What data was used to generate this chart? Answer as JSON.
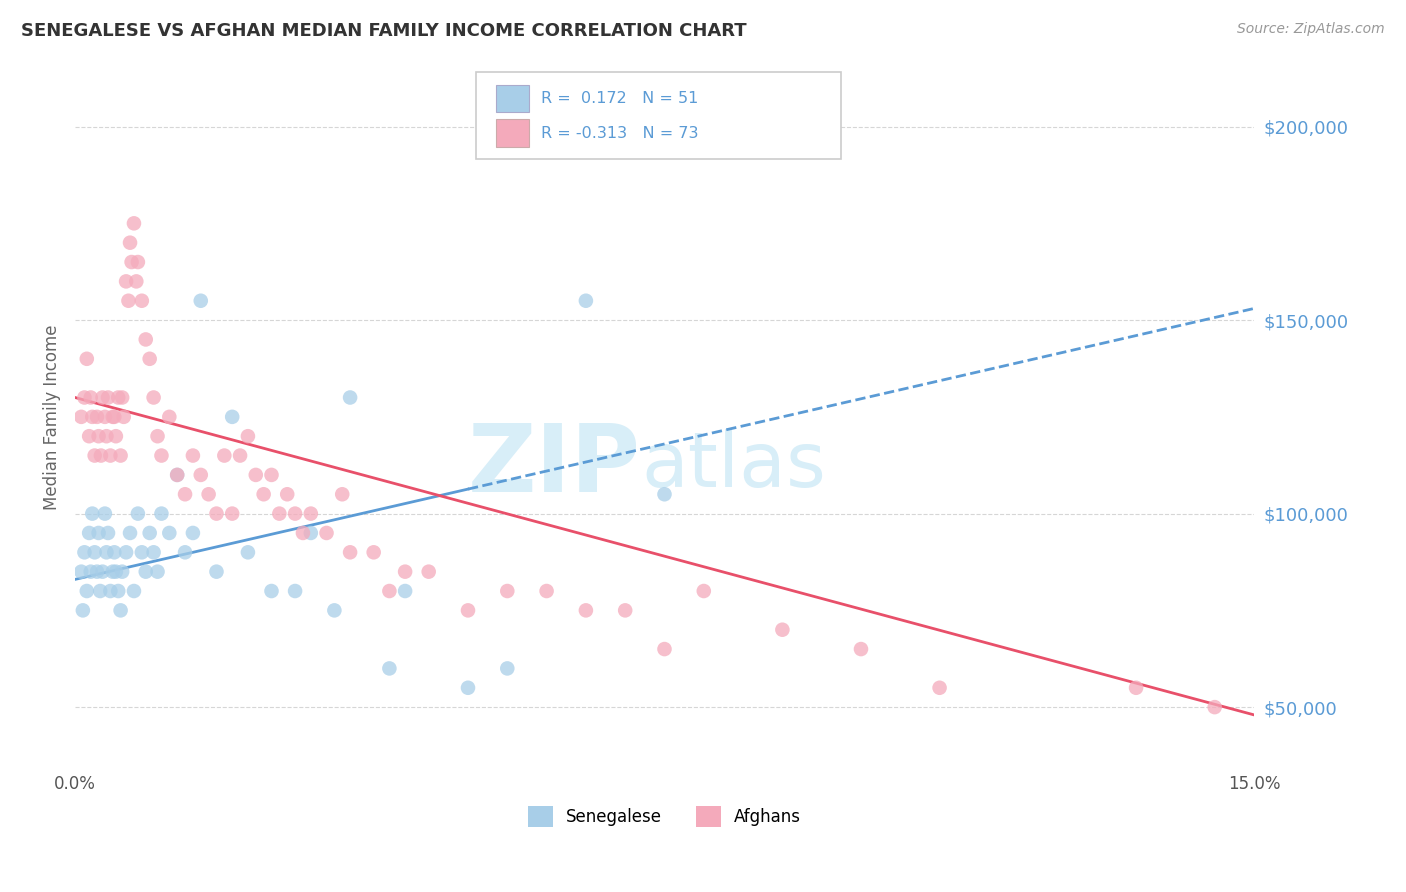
{
  "title": "SENEGALESE VS AFGHAN MEDIAN FAMILY INCOME CORRELATION CHART",
  "source": "Source: ZipAtlas.com",
  "ylabel": "Median Family Income",
  "y_tick_labels": [
    "$50,000",
    "$100,000",
    "$150,000",
    "$200,000"
  ],
  "y_tick_values": [
    50000,
    100000,
    150000,
    200000
  ],
  "ylim": [
    35000,
    215000
  ],
  "xlim": [
    0.0,
    15.0
  ],
  "legend_r1": "R =  0.172",
  "legend_n1": "N = 51",
  "legend_r2": "R = -0.313",
  "legend_n2": "N = 73",
  "series1_label": "Senegalese",
  "series2_label": "Afghans",
  "color_blue": "#A8CEE8",
  "color_pink": "#F4AABB",
  "color_blue_line": "#5B9BD5",
  "color_pink_line": "#E8506A",
  "color_blue_text": "#5B9BD5",
  "background": "#FFFFFF",
  "grid_color": "#CCCCCC",
  "senegalese_x": [
    0.08,
    0.1,
    0.12,
    0.15,
    0.18,
    0.2,
    0.22,
    0.25,
    0.28,
    0.3,
    0.32,
    0.35,
    0.38,
    0.4,
    0.42,
    0.45,
    0.48,
    0.5,
    0.52,
    0.55,
    0.58,
    0.6,
    0.65,
    0.7,
    0.75,
    0.8,
    0.85,
    0.9,
    0.95,
    1.0,
    1.05,
    1.1,
    1.2,
    1.3,
    1.4,
    1.5,
    1.6,
    1.8,
    2.0,
    2.2,
    2.5,
    2.8,
    3.0,
    3.3,
    3.5,
    4.0,
    4.2,
    5.0,
    5.5,
    6.5,
    7.5
  ],
  "senegalese_y": [
    85000,
    75000,
    90000,
    80000,
    95000,
    85000,
    100000,
    90000,
    85000,
    95000,
    80000,
    85000,
    100000,
    90000,
    95000,
    80000,
    85000,
    90000,
    85000,
    80000,
    75000,
    85000,
    90000,
    95000,
    80000,
    100000,
    90000,
    85000,
    95000,
    90000,
    85000,
    100000,
    95000,
    110000,
    90000,
    95000,
    155000,
    85000,
    125000,
    90000,
    80000,
    80000,
    95000,
    75000,
    130000,
    60000,
    80000,
    55000,
    60000,
    155000,
    105000
  ],
  "afghan_x": [
    0.08,
    0.12,
    0.15,
    0.18,
    0.2,
    0.22,
    0.25,
    0.28,
    0.3,
    0.33,
    0.35,
    0.38,
    0.4,
    0.42,
    0.45,
    0.48,
    0.5,
    0.52,
    0.55,
    0.58,
    0.6,
    0.62,
    0.65,
    0.68,
    0.7,
    0.72,
    0.75,
    0.78,
    0.8,
    0.85,
    0.9,
    0.95,
    1.0,
    1.05,
    1.1,
    1.2,
    1.3,
    1.4,
    1.5,
    1.6,
    1.7,
    1.8,
    1.9,
    2.0,
    2.1,
    2.2,
    2.3,
    2.4,
    2.5,
    2.6,
    2.7,
    2.8,
    2.9,
    3.0,
    3.2,
    3.4,
    3.5,
    3.8,
    4.0,
    4.2,
    4.5,
    5.0,
    5.5,
    6.0,
    6.5,
    7.0,
    7.5,
    8.0,
    9.0,
    10.0,
    11.0,
    13.5,
    14.5
  ],
  "afghan_y": [
    125000,
    130000,
    140000,
    120000,
    130000,
    125000,
    115000,
    125000,
    120000,
    115000,
    130000,
    125000,
    120000,
    130000,
    115000,
    125000,
    125000,
    120000,
    130000,
    115000,
    130000,
    125000,
    160000,
    155000,
    170000,
    165000,
    175000,
    160000,
    165000,
    155000,
    145000,
    140000,
    130000,
    120000,
    115000,
    125000,
    110000,
    105000,
    115000,
    110000,
    105000,
    100000,
    115000,
    100000,
    115000,
    120000,
    110000,
    105000,
    110000,
    100000,
    105000,
    100000,
    95000,
    100000,
    95000,
    105000,
    90000,
    90000,
    80000,
    85000,
    85000,
    75000,
    80000,
    80000,
    75000,
    75000,
    65000,
    80000,
    70000,
    65000,
    55000,
    55000,
    50000
  ],
  "trendline_blue_x0": 0.0,
  "trendline_blue_y0": 83000,
  "trendline_blue_x1": 15.0,
  "trendline_blue_y1": 153000,
  "trendline_pink_x0": 0.0,
  "trendline_pink_y0": 130000,
  "trendline_pink_x1": 15.0,
  "trendline_pink_y1": 48000
}
